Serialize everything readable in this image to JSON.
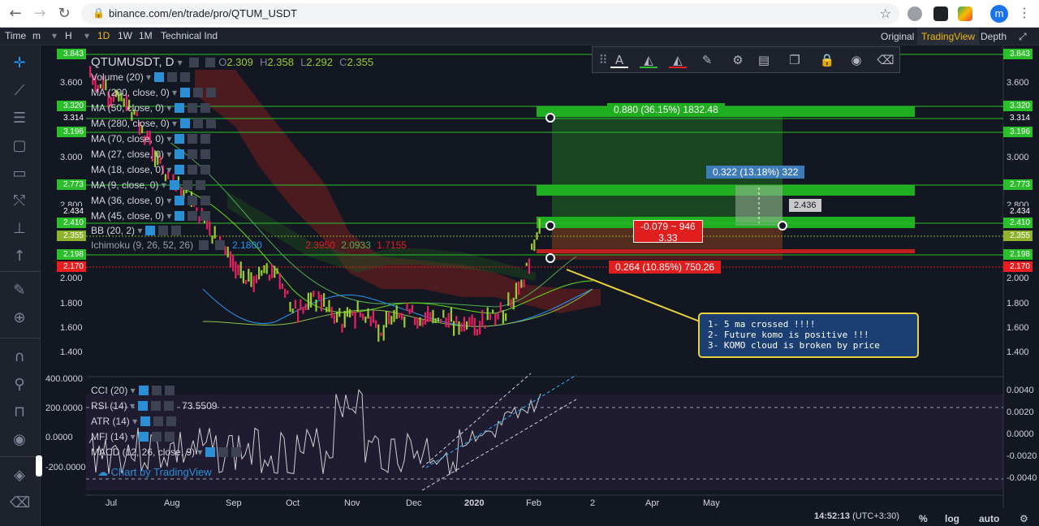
{
  "browser": {
    "url": "binance.com/en/trade/pro/QTUM_USDT",
    "avatar_letter": "m"
  },
  "toolbar": {
    "time_label": "Time",
    "minutes_label": "m",
    "hours_label": "H",
    "intervals": [
      "1D",
      "1W",
      "1M"
    ],
    "active_interval": "1D",
    "technical_ind": "Technical Ind",
    "view_original": "Original",
    "view_tradingview": "TradingView",
    "view_depth": "Depth"
  },
  "legend": {
    "symbol": "QTUMUSDT, D",
    "ohlc": {
      "o": "O",
      "o_val": "2.309",
      "h": "H",
      "h_val": "2.358",
      "l": "L",
      "l_val": "2.292",
      "c": "C",
      "c_val": "2.355"
    },
    "items": [
      "Volume (20)",
      "MA (200, close, 0)",
      "MA (50, close, 0)",
      "MA (280, close, 0)",
      "MA (70, close, 0)",
      "MA (27, close, 0)",
      "MA (18, close, 0)",
      "MA (9, close, 0)",
      "MA (36, close, 0)",
      "MA (45, close, 0)",
      "BB (20, 2)"
    ],
    "ichimoku": "Ichimoku (9, 26, 52, 26)",
    "ichimoku_vals": [
      "2.1800",
      "2.3950",
      "2.0933",
      "1.7155"
    ],
    "oscillators": [
      {
        "label": "CCI (20)",
        "value": ""
      },
      {
        "label": "RSI (14)",
        "value": "73.5509"
      },
      {
        "label": "ATR (14)",
        "value": ""
      },
      {
        "label": "MFI (14)",
        "value": ""
      },
      {
        "label": "MACD (12, 26, close, 9)",
        "value": ""
      }
    ],
    "watermark": "Chart by TradingView"
  },
  "price_axis": {
    "left_ticks": [
      "3.600",
      "3.000",
      "2.800",
      "2.000",
      "1.800",
      "1.600",
      "1.400"
    ],
    "right_ticks": [
      "3.600",
      "3.000",
      "2.800",
      "2.000",
      "1.800",
      "1.600",
      "1.400"
    ],
    "left_tags": [
      {
        "text": "3.843",
        "color": "#2bbf2b"
      },
      {
        "text": "3.320",
        "color": "#2bbf2b"
      },
      {
        "text": "3.314",
        "color": "#131722"
      },
      {
        "text": "3.196",
        "color": "#2bbf2b"
      },
      {
        "text": "2.773",
        "color": "#2bbf2b"
      },
      {
        "text": "2.434",
        "color": "#131722"
      },
      {
        "text": "2.410",
        "color": "#2bbf2b"
      },
      {
        "text": "2.355",
        "color": "#8fb32a"
      },
      {
        "text": "2.198",
        "color": "#2bbf2b"
      },
      {
        "text": "2.170",
        "color": "#e91e1e"
      }
    ],
    "right_tags": [
      {
        "text": "3.843",
        "color": "#2bbf2b"
      },
      {
        "text": "3.320",
        "color": "#2bbf2b"
      },
      {
        "text": "3.314",
        "color": "#131722"
      },
      {
        "text": "3.196",
        "color": "#2bbf2b"
      },
      {
        "text": "2.773",
        "color": "#2bbf2b"
      },
      {
        "text": "2.434",
        "color": "#131722"
      },
      {
        "text": "2.410",
        "color": "#2bbf2b"
      },
      {
        "text": "2.355",
        "color": "#8fb32a"
      },
      {
        "text": "2.198",
        "color": "#2bbf2b"
      },
      {
        "text": "2.170",
        "color": "#e91e1e"
      }
    ],
    "osc_left_ticks": [
      "400.0000",
      "200.0000",
      "0.0000",
      "-200.0000"
    ],
    "osc_right_ticks": [
      "0.0040",
      "0.0020",
      "0.0000",
      "-0.0020",
      "-0.0040"
    ]
  },
  "time_axis": [
    "Jul",
    "Aug",
    "Sep",
    "Oct",
    "Nov",
    "Dec",
    "2020",
    "Feb",
    "2",
    "Apr",
    "May"
  ],
  "annotations": {
    "target": "0.880 (36.15%) 1832.48",
    "mid": "0.322 (13.18%) 322",
    "mid_price": "2.436",
    "risk_line1": "-0.079 ~ 946",
    "risk_line2": "3.33",
    "stop": "0.264 (10.85%) 750.26",
    "note_lines": [
      "1- 5 ma crossed !!!!",
      "2- Future komo is positive !!!",
      "3- KOMO cloud is broken by price"
    ]
  },
  "status": {
    "clock": "14:52:13",
    "tz": "(UTC+3:30)",
    "percent": "%",
    "log": "log",
    "auto": "auto"
  },
  "colors": {
    "bg": "#131722",
    "up": "#9acd32",
    "down": "#e91e63",
    "green_zone": "#2bbf2b",
    "red_zone": "#d32f2f",
    "accent": "#f0b90b"
  }
}
